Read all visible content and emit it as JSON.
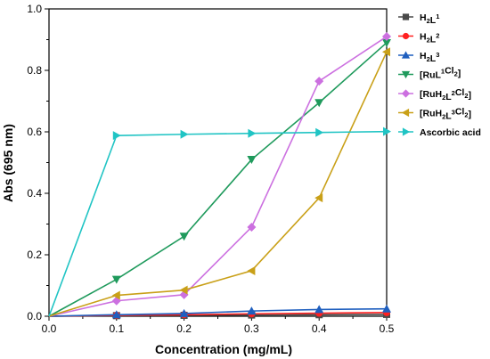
{
  "chart_data": {
    "type": "line",
    "xlabel": "Concentration (mg/mL)",
    "ylabel": "Abs (695 nm)",
    "xlim": [
      0.0,
      0.5
    ],
    "ylim": [
      0.0,
      1.0
    ],
    "xticks": [
      "0.0",
      "0.1",
      "0.2",
      "0.3",
      "0.4",
      "0.5"
    ],
    "yticks": [
      "0.0",
      "0.2",
      "0.4",
      "0.6",
      "0.8",
      "1.0"
    ],
    "x": [
      0.0,
      0.1,
      0.2,
      0.3,
      0.4,
      0.5
    ],
    "grid": false,
    "legend_position": "top-right",
    "series": [
      {
        "name": "H2L1",
        "label_parts": [
          [
            "H",
            ""
          ],
          [
            "2",
            "sub"
          ],
          [
            "L",
            ""
          ],
          [
            "1",
            "sup"
          ]
        ],
        "color": "#4a4a4a",
        "marker": "square",
        "values": [
          0.0,
          0.002,
          0.003,
          0.004,
          0.005,
          0.006
        ]
      },
      {
        "name": "H2L2",
        "label_parts": [
          [
            "H",
            ""
          ],
          [
            "2",
            "sub"
          ],
          [
            "L",
            ""
          ],
          [
            "2",
            "sup"
          ]
        ],
        "color": "#ff2020",
        "marker": "circle",
        "values": [
          0.0,
          0.003,
          0.005,
          0.008,
          0.01,
          0.012
        ]
      },
      {
        "name": "H2L3",
        "label_parts": [
          [
            "H",
            ""
          ],
          [
            "2",
            "sub"
          ],
          [
            "L",
            ""
          ],
          [
            "3",
            "sup"
          ]
        ],
        "color": "#1f5fbf",
        "marker": "triangle-up",
        "values": [
          0.0,
          0.005,
          0.009,
          0.017,
          0.022,
          0.024
        ]
      },
      {
        "name": "[RuL1Cl2]",
        "label_parts": [
          [
            "[RuL",
            ""
          ],
          [
            "1",
            "sup"
          ],
          [
            "Cl",
            ""
          ],
          [
            "2",
            "sub"
          ],
          [
            "]",
            ""
          ]
        ],
        "color": "#1f9a5c",
        "marker": "triangle-down",
        "values": [
          0.0,
          0.12,
          0.26,
          0.51,
          0.695,
          0.89
        ]
      },
      {
        "name": "[RuH2L2Cl2]",
        "label_parts": [
          [
            "[RuH",
            ""
          ],
          [
            "2",
            "sub"
          ],
          [
            "L",
            ""
          ],
          [
            "2",
            "sup"
          ],
          [
            "Cl",
            ""
          ],
          [
            "2",
            "sub"
          ],
          [
            "]",
            ""
          ]
        ],
        "color": "#cc70e0",
        "marker": "diamond",
        "values": [
          0.0,
          0.05,
          0.07,
          0.29,
          0.765,
          0.91
        ]
      },
      {
        "name": "[RuH2L3Cl2]",
        "label_parts": [
          [
            "[RuH",
            ""
          ],
          [
            "2",
            "sub"
          ],
          [
            "L",
            ""
          ],
          [
            "3",
            "sup"
          ],
          [
            "Cl",
            ""
          ],
          [
            "2",
            "sub"
          ],
          [
            "]",
            ""
          ]
        ],
        "color": "#c9a018",
        "marker": "triangle-left",
        "values": [
          0.0,
          0.068,
          0.085,
          0.148,
          0.385,
          0.86
        ]
      },
      {
        "name": "Ascorbic acid",
        "label_parts": [
          [
            "Ascorbic acid",
            ""
          ]
        ],
        "color": "#20c4c4",
        "marker": "triangle-right",
        "values": [
          0.0,
          0.588,
          0.592,
          0.595,
          0.598,
          0.601
        ]
      }
    ]
  }
}
